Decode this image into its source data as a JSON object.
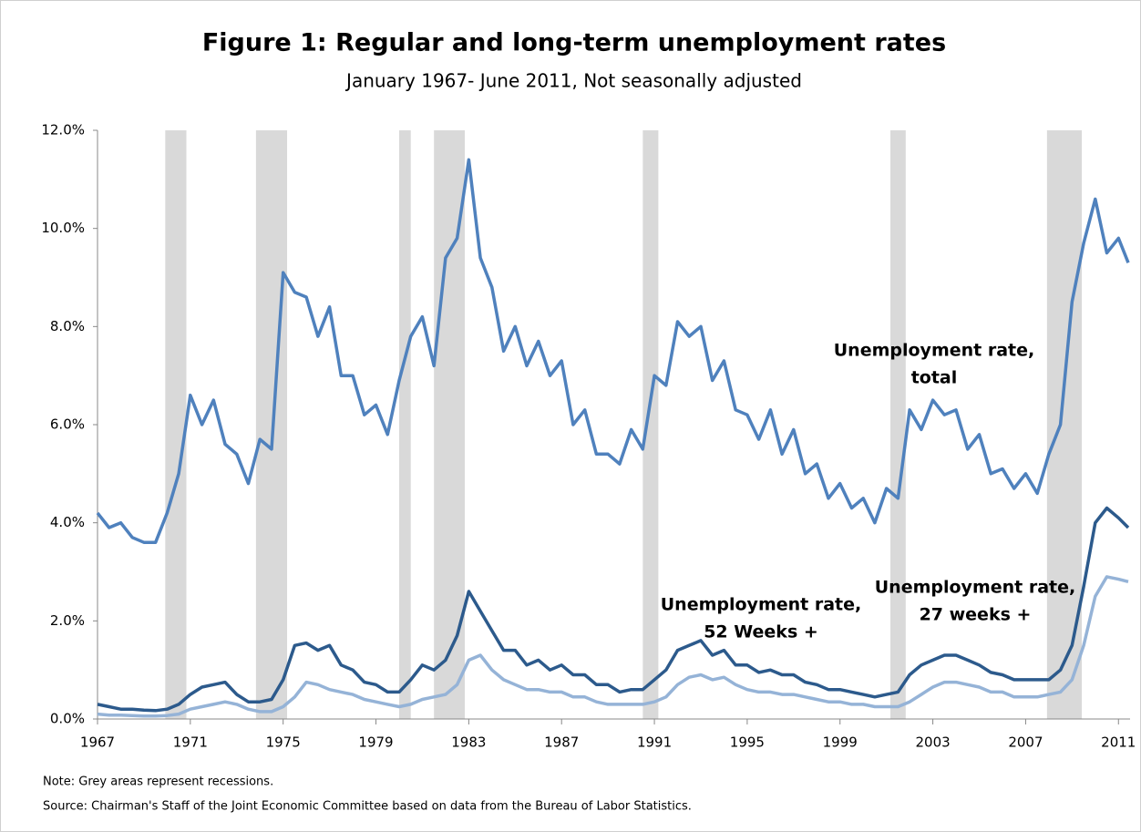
{
  "chart_data": {
    "type": "line",
    "title": "Figure 1: Regular and long-term unemployment rates",
    "subtitle": "January 1967- June 2011, Not seasonally adjusted",
    "note": "Note: Grey areas represent recessions.",
    "source": "Source: Chairman's Staff of the Joint Economic Committee based on data from the Bureau of Labor Statistics.",
    "xlim": [
      1967,
      2011.5
    ],
    "xticks": [
      1967,
      1971,
      1975,
      1979,
      1983,
      1987,
      1991,
      1995,
      1999,
      2003,
      2007,
      2011
    ],
    "ylim": [
      0,
      12
    ],
    "yticks": [
      {
        "value": 0,
        "label": "0.0%"
      },
      {
        "value": 2,
        "label": "2.0%"
      },
      {
        "value": 4,
        "label": "4.0%"
      },
      {
        "value": 6,
        "label": "6.0%"
      },
      {
        "value": 8,
        "label": "8.0%"
      },
      {
        "value": 10,
        "label": "10.0%"
      },
      {
        "value": 12,
        "label": "12.0%"
      }
    ],
    "recession_color": "#d9d9d9",
    "recessions": [
      [
        1969.92,
        1970.83
      ],
      [
        1973.83,
        1975.17
      ],
      [
        1980.0,
        1980.5
      ],
      [
        1981.5,
        1982.83
      ],
      [
        1990.5,
        1991.17
      ],
      [
        2001.17,
        2001.83
      ],
      [
        2007.92,
        2009.42
      ]
    ],
    "x": [
      1967,
      1967.5,
      1968,
      1968.5,
      1969,
      1969.5,
      1970,
      1970.5,
      1971,
      1971.5,
      1972,
      1972.5,
      1973,
      1973.5,
      1974,
      1974.5,
      1975,
      1975.5,
      1976,
      1976.5,
      1977,
      1977.5,
      1978,
      1978.5,
      1979,
      1979.5,
      1980,
      1980.5,
      1981,
      1981.5,
      1982,
      1982.5,
      1983,
      1983.5,
      1984,
      1984.5,
      1985,
      1985.5,
      1986,
      1986.5,
      1987,
      1987.5,
      1988,
      1988.5,
      1989,
      1989.5,
      1990,
      1990.5,
      1991,
      1991.5,
      1992,
      1992.5,
      1993,
      1993.5,
      1994,
      1994.5,
      1995,
      1995.5,
      1996,
      1996.5,
      1997,
      1997.5,
      1998,
      1998.5,
      1999,
      1999.5,
      2000,
      2000.5,
      2001,
      2001.5,
      2002,
      2002.5,
      2003,
      2003.5,
      2004,
      2004.5,
      2005,
      2005.5,
      2006,
      2006.5,
      2007,
      2007.5,
      2008,
      2008.5,
      2009,
      2009.5,
      2010,
      2010.5,
      2011,
      2011.42
    ],
    "series": [
      {
        "name": "Unemployment rate, total",
        "label_lines": [
          "Unemployment rate,",
          "total"
        ],
        "color": "#4f81bd",
        "values": [
          4.2,
          3.9,
          4.0,
          3.7,
          3.6,
          3.6,
          4.2,
          5.0,
          6.6,
          6.0,
          6.5,
          5.6,
          5.4,
          4.8,
          5.7,
          5.5,
          9.1,
          8.7,
          8.6,
          7.8,
          8.4,
          7.0,
          7.0,
          6.2,
          6.4,
          5.8,
          6.9,
          7.8,
          8.2,
          7.2,
          9.4,
          9.8,
          11.4,
          9.4,
          8.8,
          7.5,
          8.0,
          7.2,
          7.7,
          7.0,
          7.3,
          6.0,
          6.3,
          5.4,
          5.4,
          5.2,
          5.9,
          5.5,
          7.0,
          6.8,
          8.1,
          7.8,
          8.0,
          6.9,
          7.3,
          6.3,
          6.2,
          5.7,
          6.3,
          5.4,
          5.9,
          5.0,
          5.2,
          4.5,
          4.8,
          4.3,
          4.5,
          4.0,
          4.7,
          4.5,
          6.3,
          5.9,
          6.5,
          6.2,
          6.3,
          5.5,
          5.8,
          5.0,
          5.1,
          4.7,
          5.0,
          4.6,
          5.4,
          6.0,
          8.5,
          9.7,
          10.6,
          9.5,
          9.8,
          9.3
        ]
      },
      {
        "name": "Unemployment rate, 27 weeks +",
        "label_lines": [
          "Unemployment rate,",
          "27 weeks +"
        ],
        "color": "#2c5a8c",
        "values": [
          0.3,
          0.25,
          0.2,
          0.2,
          0.18,
          0.17,
          0.2,
          0.3,
          0.5,
          0.65,
          0.7,
          0.75,
          0.5,
          0.35,
          0.35,
          0.4,
          0.8,
          1.5,
          1.55,
          1.4,
          1.5,
          1.1,
          1.0,
          0.75,
          0.7,
          0.55,
          0.55,
          0.8,
          1.1,
          1.0,
          1.2,
          1.7,
          2.6,
          2.2,
          1.8,
          1.4,
          1.4,
          1.1,
          1.2,
          1.0,
          1.1,
          0.9,
          0.9,
          0.7,
          0.7,
          0.55,
          0.6,
          0.6,
          0.8,
          1.0,
          1.4,
          1.5,
          1.6,
          1.3,
          1.4,
          1.1,
          1.1,
          0.95,
          1.0,
          0.9,
          0.9,
          0.75,
          0.7,
          0.6,
          0.6,
          0.55,
          0.5,
          0.45,
          0.5,
          0.55,
          0.9,
          1.1,
          1.2,
          1.3,
          1.3,
          1.2,
          1.1,
          0.95,
          0.9,
          0.8,
          0.8,
          0.8,
          0.8,
          1.0,
          1.5,
          2.7,
          4.0,
          4.3,
          4.1,
          3.9
        ]
      },
      {
        "name": "Unemployment rate, 52 Weeks +",
        "label_lines": [
          "Unemployment  rate,",
          "52 Weeks +"
        ],
        "color": "#95b3d7",
        "values": [
          0.1,
          0.08,
          0.08,
          0.07,
          0.06,
          0.06,
          0.07,
          0.1,
          0.2,
          0.25,
          0.3,
          0.35,
          0.3,
          0.2,
          0.15,
          0.15,
          0.25,
          0.45,
          0.75,
          0.7,
          0.6,
          0.55,
          0.5,
          0.4,
          0.35,
          0.3,
          0.25,
          0.3,
          0.4,
          0.45,
          0.5,
          0.7,
          1.2,
          1.3,
          1.0,
          0.8,
          0.7,
          0.6,
          0.6,
          0.55,
          0.55,
          0.45,
          0.45,
          0.35,
          0.3,
          0.3,
          0.3,
          0.3,
          0.35,
          0.45,
          0.7,
          0.85,
          0.9,
          0.8,
          0.85,
          0.7,
          0.6,
          0.55,
          0.55,
          0.5,
          0.5,
          0.45,
          0.4,
          0.35,
          0.35,
          0.3,
          0.3,
          0.25,
          0.25,
          0.25,
          0.35,
          0.5,
          0.65,
          0.75,
          0.75,
          0.7,
          0.65,
          0.55,
          0.55,
          0.45,
          0.45,
          0.45,
          0.5,
          0.55,
          0.8,
          1.5,
          2.5,
          2.9,
          2.85,
          2.8
        ]
      }
    ]
  }
}
